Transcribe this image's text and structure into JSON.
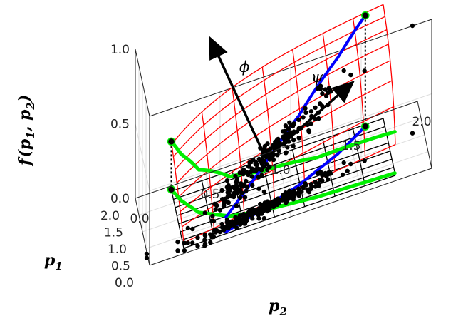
{
  "colors": {
    "surface_mesh": "#ff0000",
    "projection_mesh": "#000000",
    "phi_curve": "#0000ff",
    "psi_curve": "#00ee00",
    "samples": "#000000",
    "box": "#262626",
    "grid": "#dedede"
  },
  "chart_data": {
    "type": "surface3d",
    "title": "",
    "axes": {
      "x": {
        "label_main": "p",
        "label_sub": "2",
        "ticks": [
          "0.0",
          "0.5",
          "1.0",
          "1.5",
          "2.0"
        ],
        "range": [
          0,
          2
        ]
      },
      "y": {
        "label_main": "p",
        "label_sub": "1",
        "ticks": [
          "0.0",
          "0.5",
          "1.0",
          "1.5",
          "2.0"
        ],
        "range": [
          0,
          2
        ]
      },
      "z": {
        "label": "f(p1, p2)",
        "label_main": "f",
        "label_args": [
          "p",
          "1",
          "p",
          "2"
        ],
        "ticks": [
          "0.0",
          "0.5",
          "1.0"
        ],
        "range": [
          0,
          1
        ]
      }
    },
    "grid": true,
    "annotations": [
      {
        "symbol": "ϕ",
        "meaning": "arrow direction"
      },
      {
        "symbol": "ψ",
        "meaning": "arrow direction"
      }
    ],
    "surface": {
      "formula": "f = p1*p2/(1+p1*p2)",
      "p1_domain": [
        0.15,
        1.85
      ],
      "p2_domain": [
        0.25,
        1.75
      ]
    },
    "psi_curve": [
      [
        0.25,
        1.9
      ],
      [
        0.3,
        1.5
      ],
      [
        0.4,
        1.0
      ],
      [
        0.6,
        0.6
      ],
      [
        0.8,
        0.45
      ],
      [
        1.2,
        0.3
      ],
      [
        1.75,
        0.22
      ]
    ],
    "phi_curve": [
      [
        0.55,
        0.2
      ],
      [
        0.8,
        0.45
      ],
      [
        1.1,
        0.8
      ],
      [
        1.4,
        1.3
      ],
      [
        1.62,
        1.8
      ]
    ],
    "samples_center": [
      0.85,
      0.5
    ],
    "samples_count": 220,
    "highlight_points": [
      [
        0.25,
        1.9
      ],
      [
        1.62,
        1.8
      ]
    ]
  }
}
